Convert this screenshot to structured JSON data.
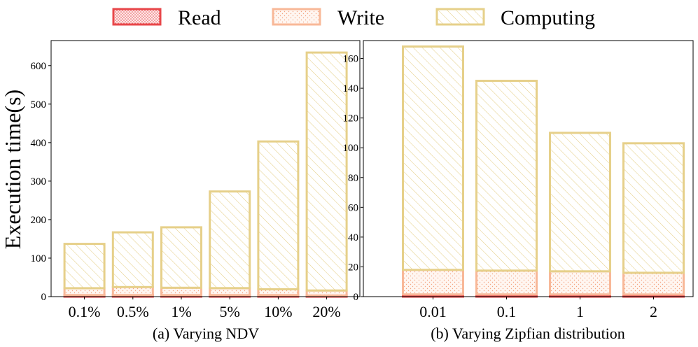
{
  "legend": [
    {
      "name": "Read",
      "color": "#e8474a",
      "fill": "#fde3e3",
      "pattern": "dots"
    },
    {
      "name": "Write",
      "color": "#f8b898",
      "fill": "#fff3ec",
      "pattern": "sparse-dots"
    },
    {
      "name": "Computing",
      "color": "#e6d08a",
      "fill": "#ffffff",
      "pattern": "hatch"
    }
  ],
  "ylabel": "Execution time(s)",
  "chart_data": [
    {
      "type": "bar",
      "stacked": true,
      "title": "(a) Varying NDV",
      "categories": [
        "0.1%",
        "0.5%",
        "1%",
        "5%",
        "10%",
        "20%"
      ],
      "ylabel": "Execution time(s)",
      "ylim": [
        0,
        665
      ],
      "yticks": [
        0,
        100,
        200,
        300,
        400,
        500,
        600
      ],
      "series": [
        {
          "name": "Read",
          "values": [
            4,
            4,
            4,
            4,
            4,
            3
          ]
        },
        {
          "name": "Write",
          "values": [
            18,
            21,
            19,
            18,
            15,
            13
          ]
        },
        {
          "name": "Computing",
          "values": [
            115,
            142,
            157,
            251,
            384,
            618
          ]
        }
      ]
    },
    {
      "type": "bar",
      "stacked": true,
      "title": "(b) Varying Zipfian distribution",
      "categories": [
        "0.01",
        "0.1",
        "1",
        "2"
      ],
      "ylim": [
        0,
        172
      ],
      "yticks": [
        0,
        20,
        40,
        60,
        80,
        100,
        120,
        140,
        160
      ],
      "series": [
        {
          "name": "Read",
          "values": [
            1.5,
            1.5,
            1.5,
            1.5
          ]
        },
        {
          "name": "Write",
          "values": [
            16.5,
            16,
            15.5,
            14.5
          ]
        },
        {
          "name": "Computing",
          "values": [
            150,
            127.5,
            93,
            87
          ]
        }
      ]
    }
  ]
}
